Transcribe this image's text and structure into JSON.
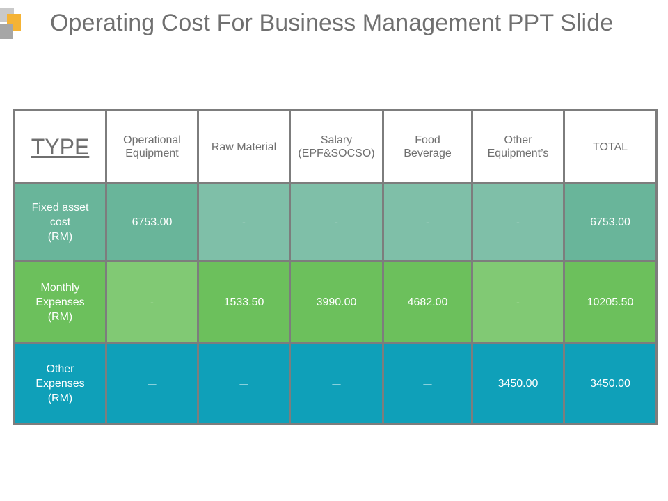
{
  "slide": {
    "title": "Operating Cost For Business Management PPT Slide",
    "colors": {
      "title": "#707070",
      "accent_orange": "#f5b335",
      "row_fixed": "#69b59a",
      "row_monthly": "#6cc05c",
      "row_other": "#0fa0b9",
      "border": "#7d7d7d"
    }
  },
  "table": {
    "type_header": "TYPE",
    "columns": [
      [
        "Operational",
        "Equipment"
      ],
      [
        "Raw Material"
      ],
      [
        "Salary",
        "(EPF&SOCSO)"
      ],
      [
        "Food",
        "Beverage"
      ],
      [
        "Other",
        "Equipment’s"
      ],
      [
        "TOTAL"
      ]
    ],
    "rows": [
      {
        "label": [
          "Fixed asset",
          "cost",
          "(RM)"
        ],
        "cells": [
          "6753.00",
          "-",
          "-",
          "-",
          "-",
          "6753.00"
        ]
      },
      {
        "label": [
          "Monthly",
          "Expenses",
          "(RM)"
        ],
        "cells": [
          "-",
          "1533.50",
          "3990.00",
          "4682.00",
          "-",
          "10205.50"
        ]
      },
      {
        "label": [
          "Other",
          "Expenses",
          "(RM)"
        ],
        "cells": [
          "–",
          "–",
          "–",
          "–",
          "3450.00",
          "3450.00"
        ]
      }
    ]
  }
}
